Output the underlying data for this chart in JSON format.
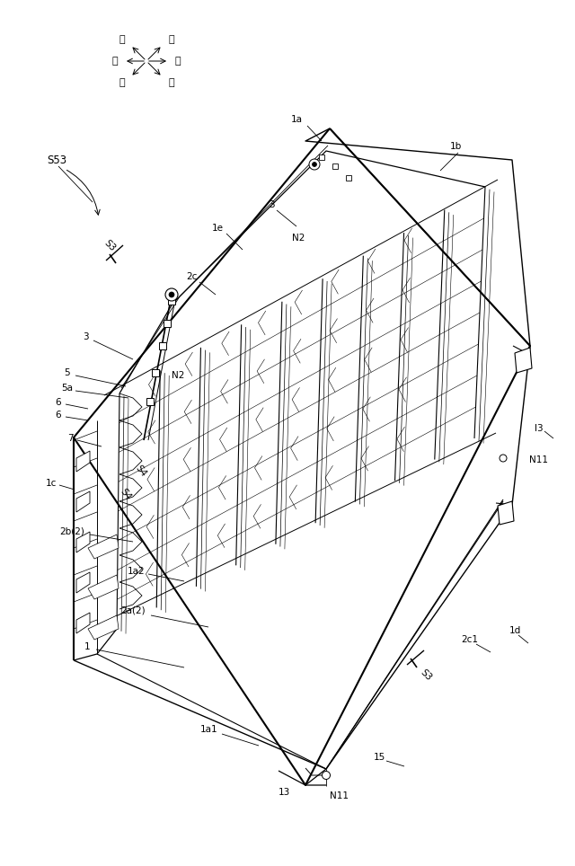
{
  "bg_color": "#ffffff",
  "fig_width": 6.4,
  "fig_height": 9.64,
  "labels": {
    "S53": "S53",
    "S3_upper": "S3",
    "S3_lower": "S3",
    "1a": "1a",
    "1b": "1b",
    "1c": "1c",
    "1d": "1d",
    "1e": "1e",
    "1a1": "1a1",
    "1a2": "1a2",
    "1": "1",
    "2a2": "2a(2)",
    "2b2": "2b(2)",
    "2c": "2c",
    "2c1": "2c1",
    "3_left": "3",
    "3_top": "3",
    "5": "5",
    "5a": "5a",
    "6a": "6",
    "6b": "6",
    "7": "7",
    "13_bot": "13",
    "13_right": "l3",
    "15": "15",
    "N2_left": "N2",
    "N2_top": "N2",
    "N11_bot": "N11",
    "N11_right": "N11",
    "S4_inner": "S4",
    "S4_outer": "S4",
    "compass_mae": "前",
    "compass_ushiro": "後",
    "compass_hidari": "左",
    "compass_migi": "右",
    "compass_ue": "上",
    "compass_shita": "下"
  }
}
